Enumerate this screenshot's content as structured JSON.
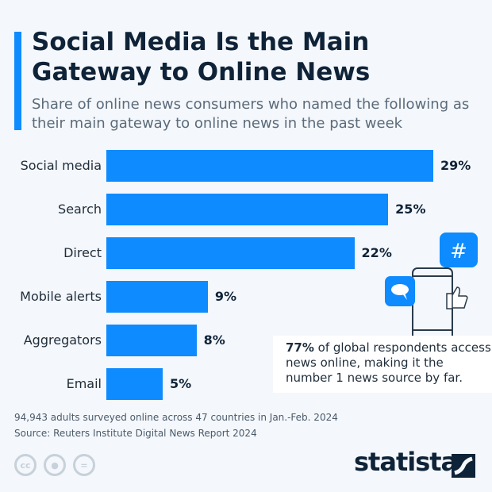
{
  "title": "Social Media Is the Main Gateway to Online News",
  "subtitle": "Share of online news consumers who named the following as their main gateway to online news in the past week",
  "chart_data": {
    "type": "bar",
    "orientation": "horizontal",
    "categories": [
      "Social media",
      "Search",
      "Direct",
      "Mobile alerts",
      "Aggregators",
      "Email"
    ],
    "values": [
      29,
      25,
      22,
      9,
      8,
      5
    ],
    "value_labels": [
      "29%",
      "25%",
      "22%",
      "9%",
      "8%",
      "5%"
    ],
    "unit": "%",
    "color": "#0d8bff"
  },
  "callout": {
    "highlight": "77%",
    "text": " of global respondents access news online, making it the number 1 news source by far."
  },
  "notes": {
    "survey": "94,943 adults surveyed online across 47 countries in Jan.-Feb. 2024",
    "source": "Source: Reuters Institute Digital News Report 2024"
  },
  "license": {
    "cc": "cc"
  },
  "brand": "statista"
}
